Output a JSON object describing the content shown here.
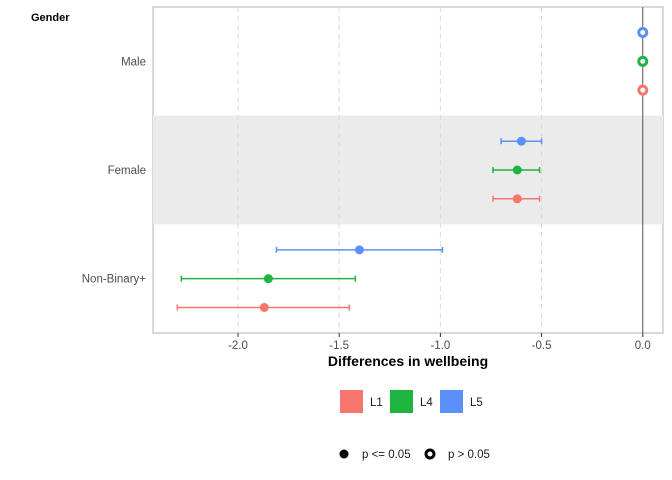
{
  "chart_data": {
    "type": "scatter",
    "facet_title": "Gender",
    "xlabel": "Differences in wellbeing",
    "xlim": [
      -2.42,
      0.1
    ],
    "xticks": [
      -2.0,
      -1.5,
      -1.0,
      -0.5,
      0.0
    ],
    "xtick_labels": [
      "-2.0",
      "-1.5",
      "-1.0",
      "-0.5",
      "0.0"
    ],
    "reference_line": 0.0,
    "categories": [
      "Male",
      "Female",
      "Non-Binary+"
    ],
    "shaded_category": "Female",
    "series": [
      {
        "name": "L1",
        "color": "#F8766D",
        "values": [
          0.0,
          -0.62,
          -1.87
        ],
        "lower": [
          null,
          -0.74,
          -2.3
        ],
        "upper": [
          null,
          -0.51,
          -1.45
        ],
        "significant": [
          false,
          true,
          true
        ]
      },
      {
        "name": "L4",
        "color": "#1FB33F",
        "values": [
          0.0,
          -0.62,
          -1.85
        ],
        "lower": [
          null,
          -0.74,
          -2.28
        ],
        "upper": [
          null,
          -0.51,
          -1.42
        ],
        "significant": [
          false,
          true,
          true
        ]
      },
      {
        "name": "L5",
        "color": "#5B8FF9",
        "values": [
          0.0,
          -0.6,
          -1.4
        ],
        "lower": [
          null,
          -0.7,
          -1.81
        ],
        "upper": [
          null,
          -0.5,
          -0.99
        ],
        "significant": [
          false,
          true,
          true
        ]
      }
    ],
    "legend": {
      "color_entries": [
        "L1",
        "L4",
        "L5"
      ],
      "shape_entries": [
        "p <= 0.05",
        "p > 0.05"
      ]
    },
    "grid": true
  }
}
